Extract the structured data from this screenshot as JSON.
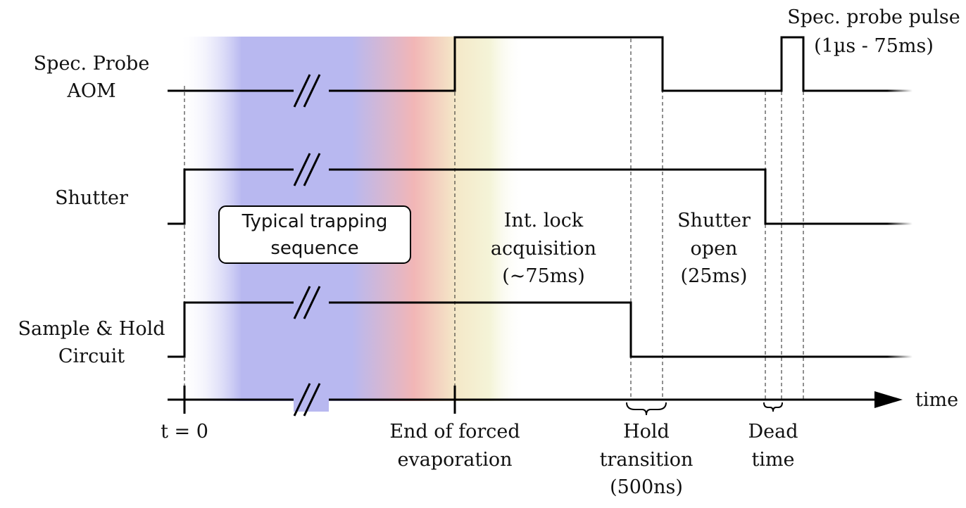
{
  "signals": {
    "probe_line1": "Spec. Probe",
    "probe_line2": "AOM",
    "shutter": "Shutter",
    "sample_line1": "Sample & Hold",
    "sample_line2": "Circuit"
  },
  "phases": {
    "trapping_line1": "Typical trapping",
    "trapping_line2": "sequence",
    "lock_line1": "Int. lock",
    "lock_line2": "acquisition",
    "lock_line3": "(~75ms)",
    "shutter_line1": "Shutter",
    "shutter_line2": "open",
    "shutter_line3": "(25ms)"
  },
  "probe_pulse": {
    "line1": "Spec. probe pulse",
    "line2": "(1µs - 75ms)"
  },
  "axis": {
    "label": "time",
    "t0": "t = 0",
    "evap_line1": "End of forced",
    "evap_line2": "evaporation",
    "hold_line1": "Hold",
    "hold_line2": "transition",
    "hold_line3": "(500ns)",
    "dead_line1": "Dead",
    "dead_line2": "time"
  },
  "colors": {
    "trapping_blue": "#b8b8f0",
    "evaporation_red": "#f2b6b6",
    "lock_yellow": "#f4f4d4"
  }
}
